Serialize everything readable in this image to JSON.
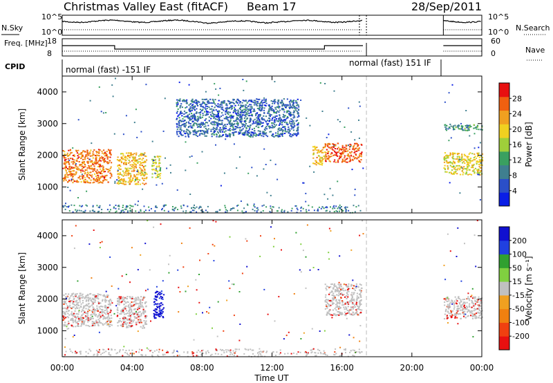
{
  "header": {
    "title": "Christmas Valley East (fitACF)",
    "beam": "Beam 17",
    "date": "28/Sep/2011"
  },
  "chart_data": [
    {
      "type": "line",
      "panel": "noise",
      "left_label": "N.Sky",
      "right_label": "N.Search",
      "left_ticks": [
        "10^5",
        "10^0"
      ],
      "right_ticks": [
        "10^5",
        "10^0"
      ],
      "data_gaps_hours": [
        [
          17.2,
          21.8
        ]
      ],
      "markers_hours": [
        17.0,
        17.4
      ]
    },
    {
      "type": "line",
      "panel": "frequency",
      "left_label": "Freq. [MHz]",
      "right_label": "Nave",
      "left_ticks": [
        "18",
        "8"
      ],
      "right_ticks": [
        "60",
        "0"
      ],
      "freq_segments": [
        {
          "start": 0.0,
          "end": 3.0,
          "value": 14
        },
        {
          "start": 3.0,
          "end": 15.0,
          "value": 12
        },
        {
          "start": 15.0,
          "end": 17.2,
          "value": 14
        },
        {
          "start": 21.8,
          "end": 24.0,
          "value": 14
        }
      ]
    },
    {
      "type": "label-strip",
      "panel": "cpid",
      "label": "CPID",
      "entries": [
        {
          "start_hour": 0.0,
          "text": "normal (fast) -151 IF"
        },
        {
          "start_hour": 17.4,
          "text": "normal (fast) 151 IF"
        }
      ]
    },
    {
      "type": "heatmap",
      "panel": "power",
      "ylabel": "Slant Range [km]",
      "ylim": [
        180,
        4500
      ],
      "yticks": [
        1000,
        2000,
        3000,
        4000
      ],
      "colorbar": {
        "label": "Power [dB]",
        "ticks": [
          "4",
          "8",
          "12",
          "16",
          "20",
          "24",
          "28"
        ],
        "colors": [
          "#0a1ee6",
          "#2b4fc8",
          "#3f7f8f",
          "#3aa060",
          "#9fcf3a",
          "#f0d020",
          "#f0a020",
          "#f06010",
          "#e81010"
        ]
      },
      "echo_regions": [
        {
          "t0": 0.0,
          "t1": 2.8,
          "r0": 1150,
          "r1": 2200,
          "level": 26
        },
        {
          "t0": 3.1,
          "t1": 4.8,
          "r0": 1100,
          "r1": 2100,
          "level": 22
        },
        {
          "t0": 5.1,
          "t1": 5.6,
          "r0": 1300,
          "r1": 2000,
          "level": 18
        },
        {
          "t0": 14.3,
          "t1": 15.0,
          "r0": 1700,
          "r1": 2300,
          "level": 22
        },
        {
          "t0": 15.0,
          "t1": 17.1,
          "r0": 1800,
          "r1": 2400,
          "level": 28
        },
        {
          "t0": 21.8,
          "t1": 24.0,
          "r0": 1400,
          "r1": 2100,
          "level": 20
        },
        {
          "t0": 21.8,
          "t1": 24.0,
          "r0": 2800,
          "r1": 3000,
          "level": 10
        },
        {
          "t0": 6.5,
          "t1": 13.5,
          "r0": 2600,
          "r1": 3800,
          "level": 6
        }
      ]
    },
    {
      "type": "heatmap",
      "panel": "velocity",
      "ylabel": "Slant Range [km]",
      "ylim": [
        180,
        4500
      ],
      "yticks": [
        1000,
        2000,
        3000,
        4000
      ],
      "xlabel": "Time UT",
      "xticks": [
        "00:00",
        "04:00",
        "08:00",
        "12:00",
        "16:00",
        "20:00",
        "00:00"
      ],
      "xlim_hours": [
        0,
        24
      ],
      "colorbar": {
        "label": "Velocity [m s⁻¹]",
        "ticks": [
          "200",
          "100",
          "50",
          "15",
          "-15",
          "-50",
          "-100",
          "-200"
        ],
        "colors": [
          "#1010d0",
          "#2040e0",
          "#30a030",
          "#80d040",
          "#c0c0c0",
          "#f0a020",
          "#f08010",
          "#f04010",
          "#e81010"
        ]
      },
      "echo_regions": [
        {
          "t0": 0.0,
          "t1": 2.8,
          "r0": 1150,
          "r1": 2200,
          "velocity": 0
        },
        {
          "t0": 3.1,
          "t1": 4.8,
          "r0": 1100,
          "r1": 2100,
          "velocity": 0
        },
        {
          "t0": 5.2,
          "t1": 5.8,
          "r0": 1400,
          "r1": 2300,
          "velocity": 200
        },
        {
          "t0": 15.0,
          "t1": 17.1,
          "r0": 1500,
          "r1": 2500,
          "velocity": 0
        },
        {
          "t0": 21.8,
          "t1": 24.0,
          "r0": 1400,
          "r1": 2100,
          "velocity": 0
        }
      ]
    }
  ]
}
